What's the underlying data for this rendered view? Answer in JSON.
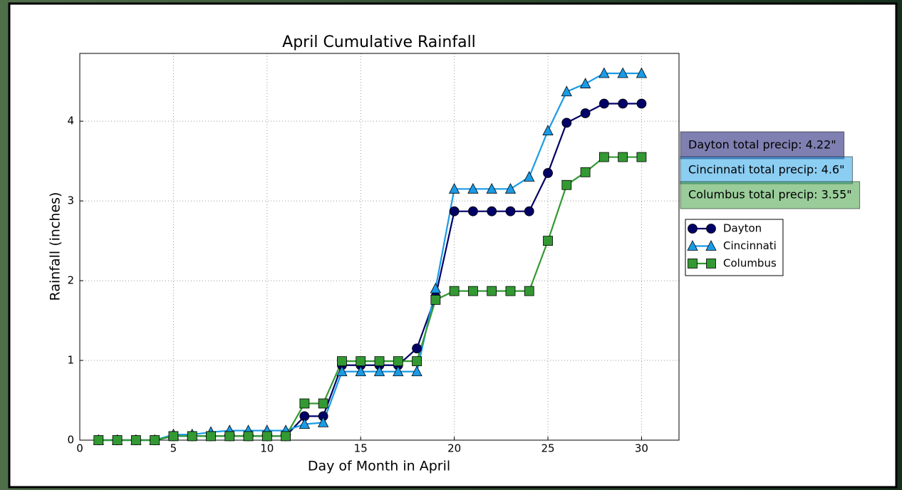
{
  "chart_data": {
    "type": "line",
    "title": "April Cumulative Rainfall",
    "x_label": "Day of Month in April",
    "y_label": "Rainfall (inches)",
    "x": [
      1,
      2,
      3,
      4,
      5,
      6,
      7,
      8,
      9,
      10,
      11,
      12,
      13,
      14,
      15,
      16,
      17,
      18,
      19,
      20,
      21,
      22,
      23,
      24,
      25,
      26,
      27,
      28,
      29,
      30
    ],
    "series": [
      {
        "name": "Dayton",
        "color": "#000066",
        "marker": "circle",
        "values": [
          0,
          0,
          0,
          0,
          0.05,
          0.05,
          0.05,
          0.05,
          0.05,
          0.05,
          0.05,
          0.3,
          0.3,
          0.94,
          0.94,
          0.94,
          0.94,
          1.15,
          1.8,
          2.87,
          2.87,
          2.87,
          2.87,
          2.87,
          3.35,
          3.98,
          4.1,
          4.22,
          4.22,
          4.22
        ]
      },
      {
        "name": "Cincinnati",
        "color": "#1a9be6",
        "marker": "triangle",
        "values": [
          0,
          0,
          0,
          0,
          0.07,
          0.07,
          0.1,
          0.12,
          0.12,
          0.12,
          0.12,
          0.2,
          0.22,
          0.86,
          0.86,
          0.86,
          0.86,
          0.86,
          1.9,
          3.15,
          3.15,
          3.15,
          3.15,
          3.3,
          3.88,
          4.37,
          4.47,
          4.6,
          4.6,
          4.6
        ]
      },
      {
        "name": "Columbus",
        "color": "#339933",
        "marker": "square",
        "values": [
          0,
          0,
          0,
          0,
          0.05,
          0.05,
          0.05,
          0.05,
          0.05,
          0.05,
          0.05,
          0.46,
          0.46,
          0.99,
          0.99,
          0.99,
          0.99,
          0.99,
          1.76,
          1.87,
          1.87,
          1.87,
          1.87,
          1.87,
          2.5,
          3.2,
          3.36,
          3.55,
          3.55,
          3.55
        ]
      }
    ],
    "annotations": [
      "Dayton total precip: 4.22\"",
      "Cincinnati total precip: 4.6\"",
      "Columbus total precip: 3.55\""
    ],
    "xlim": [
      0,
      32
    ],
    "ylim": [
      0,
      4.85
    ],
    "xticks": [
      0,
      5,
      10,
      15,
      20,
      25,
      30
    ],
    "yticks": [
      0,
      1,
      2,
      3,
      4
    ],
    "grid": true,
    "legend": "right"
  }
}
